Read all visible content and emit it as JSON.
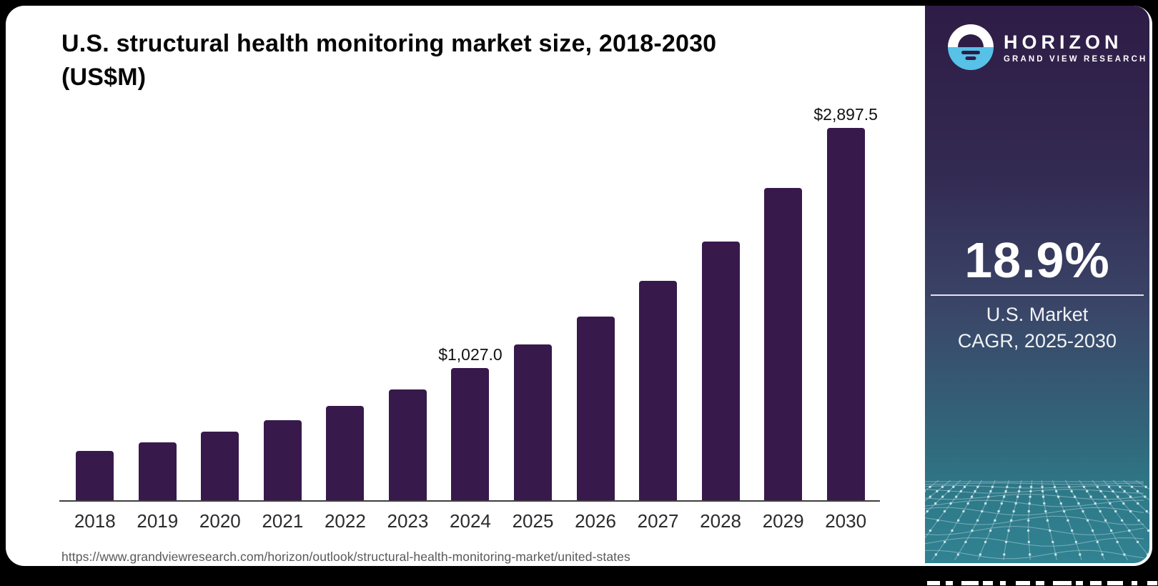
{
  "header": {
    "title_line1": "U.S. structural health monitoring market size, 2018-2030",
    "title_line2": "(US$M)"
  },
  "source": {
    "url": "https://www.grandviewresearch.com/horizon/outlook/structural-health-monitoring-market/united-states"
  },
  "chart_data": {
    "type": "bar",
    "title": "U.S. structural health monitoring market size, 2018-2030 (US$M)",
    "unit": "US$M",
    "categories": [
      "2018",
      "2019",
      "2020",
      "2021",
      "2022",
      "2023",
      "2024",
      "2025",
      "2026",
      "2027",
      "2028",
      "2029",
      "2030"
    ],
    "values": [
      385,
      450,
      534,
      623,
      734,
      862,
      1027.0,
      1215,
      1430,
      1707,
      2013,
      2430,
      2897.5
    ],
    "value_labels": {
      "2024": "$1,027.0",
      "2030": "$2,897.5"
    },
    "bar_color": "#38194c",
    "ylim": [
      0,
      3000
    ],
    "grid": false,
    "legend": false,
    "xlabel": "",
    "ylabel": ""
  },
  "sidebar": {
    "logo": {
      "brand": "HORIZON",
      "subtitle": "GRAND VIEW RESEARCH"
    },
    "stat_value": "18.9%",
    "stat_label_line1": "U.S. Market",
    "stat_label_line2": "CAGR, 2025-2030",
    "colors": {
      "accent_blue": "#57c1e8",
      "panel_top": "#2e1c46",
      "panel_bottom": "#318292",
      "mesh_line": "#c6e0e8"
    }
  }
}
